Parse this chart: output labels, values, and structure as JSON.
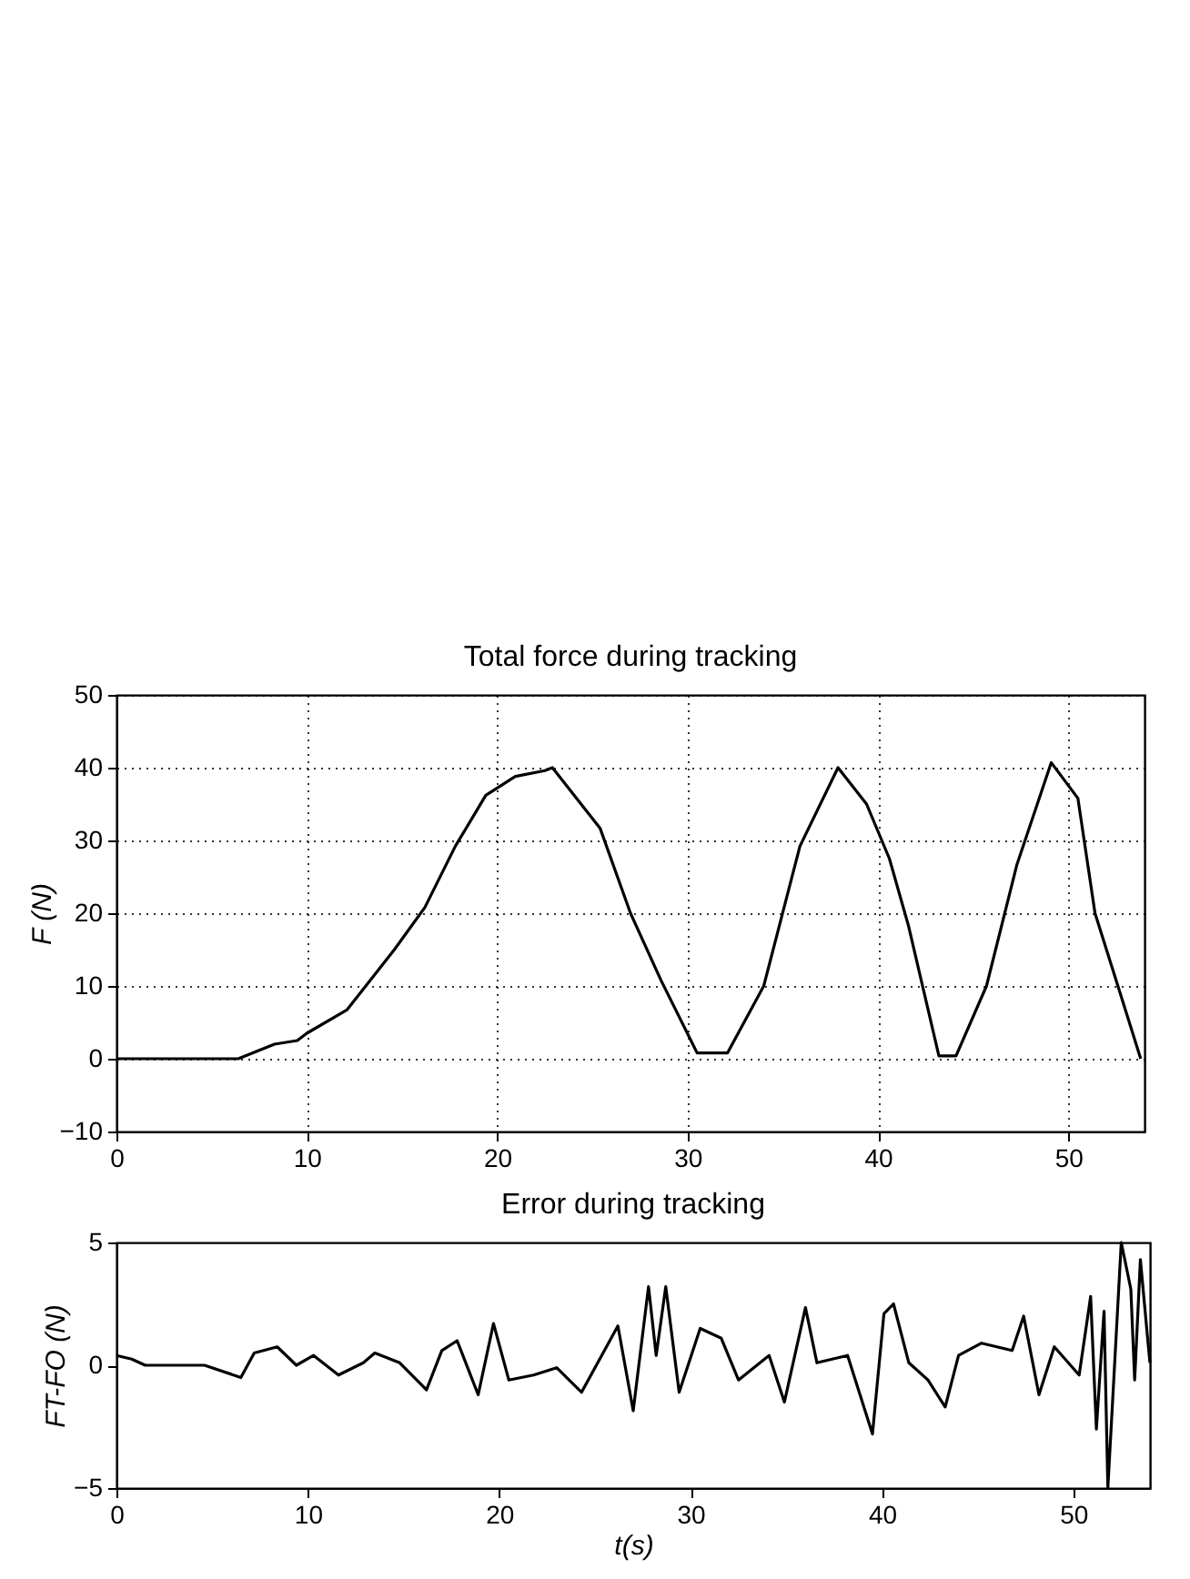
{
  "chart_data": [
    {
      "type": "line",
      "title": "Total force during tracking",
      "ylabel": "F (N)",
      "xlim": [
        0,
        54
      ],
      "xticks": [
        0,
        10,
        20,
        30,
        40,
        50
      ],
      "ylim": [
        -10,
        50
      ],
      "yticks": [
        -10,
        0,
        10,
        20,
        30,
        40,
        50
      ],
      "grid": true,
      "series": [
        {
          "color": "#000000",
          "x": [
            0,
            6.4,
            8.3,
            9.5,
            10,
            12.1,
            14.6,
            16.2,
            17.8,
            19.4,
            20.95,
            22.5,
            22.9,
            25.4,
            27,
            28.6,
            30.5,
            32.1,
            34,
            35.9,
            37.9,
            39.4,
            40.6,
            41.6,
            43.2,
            44.1,
            45.7,
            47.3,
            49.1,
            50.5,
            51.4,
            52.7,
            53.8
          ],
          "values": [
            0,
            0,
            2,
            2.5,
            3.5,
            6.7,
            15,
            20.8,
            29.2,
            36.2,
            38.8,
            39.6,
            40,
            31.7,
            20,
            10.8,
            0.8,
            0.8,
            10,
            29.2,
            40,
            35,
            27.5,
            18.3,
            0.4,
            0.4,
            10,
            26.7,
            40.7,
            35.8,
            20,
            9.2,
            0
          ]
        }
      ]
    },
    {
      "type": "line",
      "title": "Error during tracking",
      "xlabel": "t(s)",
      "ylabel": "FT-FO (N)",
      "xlim": [
        0,
        54
      ],
      "xticks": [
        0,
        10,
        20,
        30,
        40,
        50
      ],
      "ylim": [
        -5,
        5
      ],
      "yticks": [
        -5,
        0,
        5
      ],
      "grid": false,
      "series": [
        {
          "color": "#000000",
          "x": [
            0,
            0.8,
            1.5,
            4.6,
            6.5,
            7.2,
            8.4,
            9.4,
            10.3,
            11.6,
            12.9,
            13.5,
            14.8,
            16.2,
            17,
            17.8,
            18.9,
            19.7,
            20.5,
            21.8,
            23,
            24.3,
            26.2,
            27,
            27.8,
            28.2,
            28.7,
            29.4,
            30.5,
            31.6,
            32.5,
            34.1,
            34.9,
            36,
            36.6,
            38.2,
            39.5,
            40.1,
            40.6,
            41.4,
            42.4,
            43.3,
            44,
            45.2,
            46.8,
            47.4,
            48.2,
            49,
            50.3,
            50.9,
            51.2,
            51.6,
            51.8,
            52.5,
            53,
            53.2,
            53.5,
            53.9,
            54
          ],
          "values": [
            0.4,
            0.25,
            0,
            0,
            -0.5,
            0.5,
            0.75,
            0,
            0.4,
            -0.4,
            0.1,
            0.5,
            0.1,
            -1,
            0.6,
            1,
            -1.2,
            1.7,
            -0.6,
            -0.4,
            -0.1,
            -1.1,
            1.6,
            -1.85,
            3.2,
            0.4,
            3.2,
            -1.1,
            1.5,
            1.1,
            -0.6,
            0.4,
            -1.5,
            2.35,
            0.1,
            0.4,
            -2.8,
            2.1,
            2.5,
            0.1,
            -0.6,
            -1.7,
            0.4,
            0.9,
            0.6,
            2,
            -1.2,
            0.75,
            -0.4,
            2.8,
            -2.6,
            2.2,
            -5,
            5,
            3.1,
            -0.6,
            4.3,
            0.9,
            0.1
          ]
        }
      ]
    }
  ]
}
